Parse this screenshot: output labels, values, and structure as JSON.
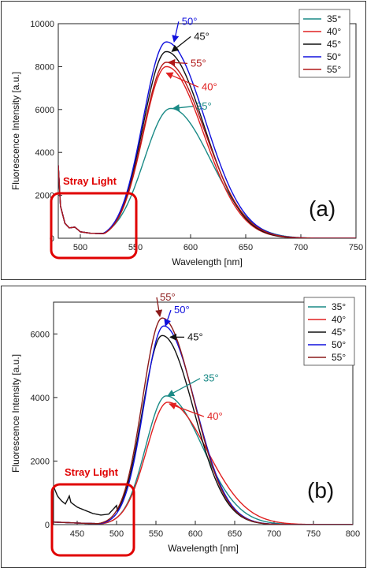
{
  "chart_data": [
    {
      "type": "line",
      "panel_label": "(a)",
      "xlabel": "Wavelength [nm]",
      "ylabel": "Fluorescence Intensity [a.u.]",
      "xlim": [
        480,
        750
      ],
      "ylim": [
        0,
        10000
      ],
      "x_ticks": [
        500,
        550,
        600,
        650,
        700,
        750
      ],
      "y_ticks": [
        0,
        2000,
        4000,
        6000,
        8000,
        10000
      ],
      "legend_position": "top-right",
      "grid": false,
      "stray_light_label": "Stray Light",
      "series": [
        {
          "name": "35°",
          "color": "#1a8a86",
          "peak_x": 582,
          "peak": 6050,
          "width_left": 24,
          "width_right": 36,
          "points": [
            [
              480,
              3400
            ],
            [
              482,
              1500
            ],
            [
              486,
              700
            ],
            [
              490,
              480
            ],
            [
              495,
              520
            ],
            [
              500,
              300
            ],
            [
              510,
              230
            ],
            [
              520,
              220
            ],
            [
              530,
              230
            ],
            [
              540,
              290
            ],
            [
              550,
              600
            ]
          ]
        },
        {
          "name": "40°",
          "color": "#e02020",
          "peak_x": 578,
          "peak": 8000,
          "width_left": 21,
          "width_right": 34,
          "points": [
            [
              480,
              3400
            ],
            [
              482,
              1500
            ],
            [
              486,
              700
            ],
            [
              490,
              480
            ],
            [
              495,
              520
            ],
            [
              500,
              300
            ],
            [
              510,
              230
            ],
            [
              520,
              220
            ],
            [
              530,
              230
            ],
            [
              540,
              320
            ],
            [
              550,
              900
            ]
          ]
        },
        {
          "name": "45°",
          "color": "#111111",
          "peak_x": 578,
          "peak": 8700,
          "width_left": 21,
          "width_right": 34,
          "points": [
            [
              480,
              3400
            ],
            [
              482,
              1500
            ],
            [
              486,
              700
            ],
            [
              490,
              480
            ],
            [
              495,
              520
            ],
            [
              500,
              300
            ],
            [
              510,
              230
            ],
            [
              520,
              220
            ],
            [
              530,
              230
            ],
            [
              540,
              340
            ],
            [
              550,
              950
            ]
          ]
        },
        {
          "name": "50°",
          "color": "#1010dd",
          "peak_x": 578,
          "peak": 9150,
          "width_left": 21,
          "width_right": 35,
          "points": [
            [
              480,
              3400
            ],
            [
              482,
              1500
            ],
            [
              486,
              700
            ],
            [
              490,
              480
            ],
            [
              495,
              520
            ],
            [
              500,
              300
            ],
            [
              510,
              230
            ],
            [
              520,
              220
            ],
            [
              530,
              230
            ],
            [
              540,
              350
            ],
            [
              550,
              1000
            ]
          ]
        },
        {
          "name": "55°",
          "color": "#b01818",
          "peak_x": 578,
          "peak": 8200,
          "width_left": 21,
          "width_right": 35,
          "points": [
            [
              480,
              3400
            ],
            [
              482,
              1500
            ],
            [
              486,
              700
            ],
            [
              490,
              480
            ],
            [
              495,
              520
            ],
            [
              500,
              300
            ],
            [
              510,
              230
            ],
            [
              520,
              220
            ],
            [
              530,
              230
            ],
            [
              540,
              330
            ],
            [
              550,
              920
            ]
          ]
        }
      ],
      "annotations": [
        {
          "text": "50°",
          "color": "#1010dd",
          "x": 585,
          "y": 9150,
          "tx": 592,
          "ty": 9950
        },
        {
          "text": "45°",
          "color": "#111111",
          "x": 583,
          "y": 8700,
          "tx": 603,
          "ty": 9250
        },
        {
          "text": "55°",
          "color": "#b01818",
          "x": 580,
          "y": 8200,
          "tx": 600,
          "ty": 8000
        },
        {
          "text": "40°",
          "color": "#e02020",
          "x": 578,
          "y": 7700,
          "tx": 610,
          "ty": 6900
        },
        {
          "text": "35°",
          "color": "#1a8a86",
          "x": 584,
          "y": 6050,
          "tx": 605,
          "ty": 6000
        }
      ]
    },
    {
      "type": "line",
      "panel_label": "(b)",
      "xlabel": "Wavelength [nm]",
      "ylabel": "Fluorescence Intensity [a.u.]",
      "xlim": [
        420,
        800
      ],
      "ylim": [
        0,
        7000
      ],
      "x_ticks": [
        450,
        500,
        550,
        600,
        650,
        700,
        750,
        800
      ],
      "y_ticks": [
        0,
        2000,
        4000,
        6000
      ],
      "legend_position": "top-right",
      "grid": false,
      "stray_light_label": "Stray Light",
      "series": [
        {
          "name": "35°",
          "color": "#1a8a86",
          "peak_x": 563,
          "peak": 4050,
          "width_left": 26,
          "width_right": 46,
          "points": [
            [
              420,
              80
            ],
            [
              440,
              60
            ],
            [
              460,
              40
            ],
            [
              480,
              30
            ],
            [
              490,
              40
            ],
            [
              500,
              200
            ]
          ]
        },
        {
          "name": "40°",
          "color": "#e02020",
          "peak_x": 565,
          "peak": 3850,
          "width_left": 27,
          "width_right": 50,
          "points": [
            [
              420,
              80
            ],
            [
              440,
              60
            ],
            [
              460,
              40
            ],
            [
              480,
              30
            ],
            [
              490,
              40
            ],
            [
              500,
              200
            ]
          ]
        },
        {
          "name": "45°",
          "color": "#111111",
          "peak_x": 558,
          "peak": 5950,
          "width_left": 25,
          "width_right": 40,
          "points": [
            [
              420,
              1200
            ],
            [
              425,
              900
            ],
            [
              430,
              750
            ],
            [
              435,
              650
            ],
            [
              440,
              900
            ],
            [
              442,
              700
            ],
            [
              450,
              550
            ],
            [
              460,
              450
            ],
            [
              470,
              350
            ],
            [
              480,
              300
            ],
            [
              490,
              330
            ],
            [
              500,
              600
            ]
          ]
        },
        {
          "name": "50°",
          "color": "#1010dd",
          "peak_x": 560,
          "peak": 6250,
          "width_left": 25,
          "width_right": 40,
          "points": [
            [
              420,
              80
            ],
            [
              440,
              60
            ],
            [
              460,
              40
            ],
            [
              480,
              30
            ],
            [
              490,
              40
            ],
            [
              500,
              250
            ]
          ]
        },
        {
          "name": "55°",
          "color": "#8b1a1a",
          "peak_x": 558,
          "peak": 6500,
          "width_left": 25,
          "width_right": 40,
          "points": [
            [
              420,
              80
            ],
            [
              440,
              60
            ],
            [
              460,
              40
            ],
            [
              480,
              30
            ],
            [
              490,
              40
            ],
            [
              500,
              250
            ]
          ]
        }
      ],
      "annotations": [
        {
          "text": "55°",
          "color": "#8b1a1a",
          "x": 555,
          "y": 6550,
          "tx": 555,
          "ty": 7050
        },
        {
          "text": "50°",
          "color": "#1010dd",
          "x": 562,
          "y": 6250,
          "tx": 573,
          "ty": 6650
        },
        {
          "text": "45°",
          "color": "#111111",
          "x": 568,
          "y": 5900,
          "tx": 590,
          "ty": 5800
        },
        {
          "text": "35°",
          "color": "#1a8a86",
          "x": 565,
          "y": 4050,
          "tx": 610,
          "ty": 4500
        },
        {
          "text": "40°",
          "color": "#e02020",
          "x": 567,
          "y": 3800,
          "tx": 615,
          "ty": 3300
        }
      ]
    }
  ]
}
